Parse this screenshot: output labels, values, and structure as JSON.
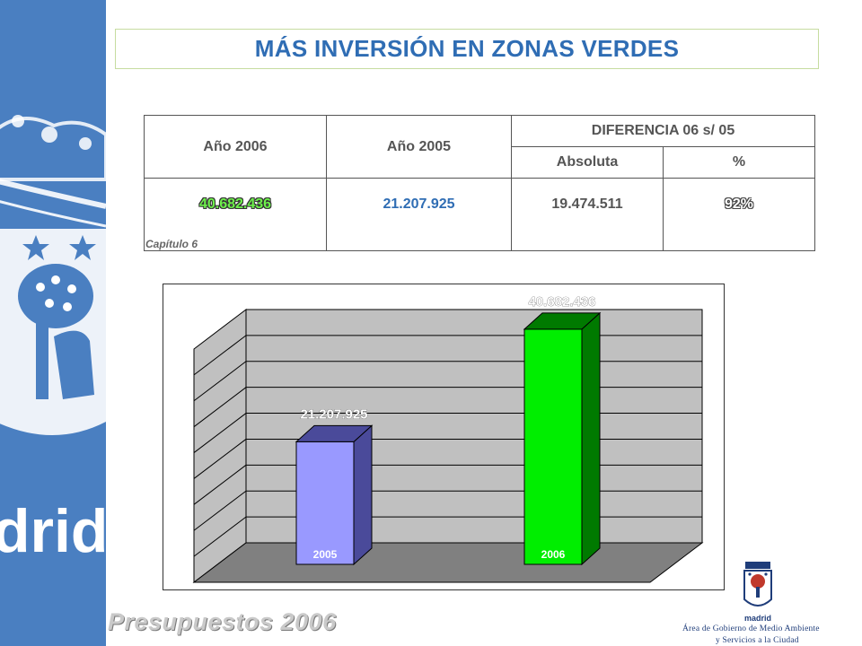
{
  "title": "MÁS INVERSIÓN EN ZONAS VERDES",
  "table": {
    "headers": {
      "year_2006": "Año 2006",
      "year_2005": "Año 2005",
      "difference": "DIFERENCIA 06 s/ 05",
      "absolute": "Absoluta",
      "percent": "%"
    },
    "row": {
      "y2006": "40.682.436",
      "y2005": "21.207.925",
      "absolute": "19.474.511",
      "percent": "92%"
    }
  },
  "chapter_label": "Capítulo 6",
  "chart_data": {
    "type": "bar",
    "categories": [
      "2005",
      "2006"
    ],
    "values": [
      21207925,
      40682436
    ],
    "data_labels": [
      "21.207.925",
      "40.682.436"
    ],
    "colors": [
      "#9999ff",
      "#00ee00"
    ],
    "side_colors": [
      "#4a4a9a",
      "#007a00"
    ],
    "title": "",
    "xlabel": "",
    "ylabel": "",
    "ylim": [
      0,
      45000000
    ],
    "grid": true,
    "legend": "none",
    "three_d": true
  },
  "footer": "Presupuestos 2006",
  "logo": {
    "name": "madrid",
    "line1": "Área de Gobierno de Medio Ambiente",
    "line2": "y Servicios a la Ciudad"
  },
  "sidebar_text": "drid",
  "colors": {
    "sidebar": "#4a7fc1",
    "title": "#2f6db4",
    "bar_2005": "#9999ff",
    "bar_2006": "#00ee00"
  }
}
